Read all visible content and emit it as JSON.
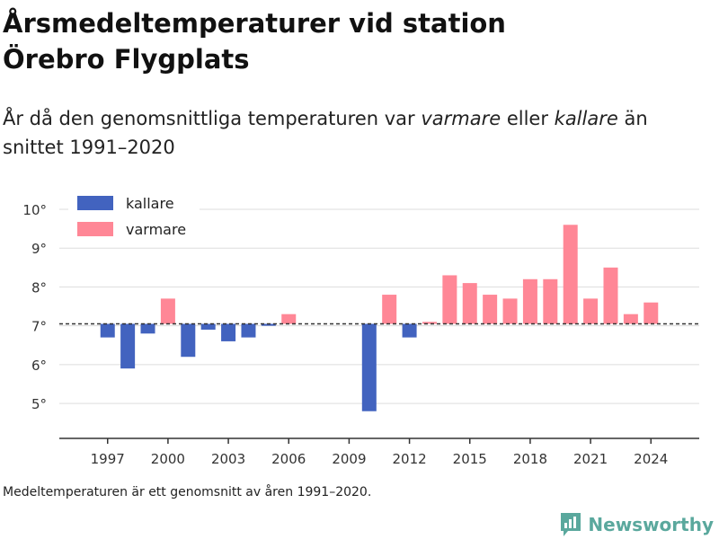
{
  "title_line1": "Årsmedeltemperaturer vid station",
  "title_line2": "Örebro Flygplats",
  "subtitle": {
    "pre": "År då den genomsnittliga temperaturen var ",
    "warmer": "varmare",
    "mid": " eller ",
    "colder": "kallare",
    "post": " än snittet 1991–2020"
  },
  "footnote": "Medeltemperaturen är ett genomsnitt av åren 1991–2020.",
  "brand": {
    "name": "Newsworthy",
    "icon": "newsworthy-logo-icon"
  },
  "colors": {
    "colder": "#4263bf",
    "warmer": "#ff8796",
    "grid": "#dddddd",
    "axis": "#333333"
  },
  "chart_data": {
    "type": "bar",
    "baseline": 7.05,
    "ylim": [
      4.1,
      10.3
    ],
    "yticks": [
      5,
      6,
      7,
      8,
      9,
      10
    ],
    "ytick_labels": [
      "5°",
      "6°",
      "7°",
      "8°",
      "9°",
      "10°"
    ],
    "xlim": [
      1994.6,
      2026.4
    ],
    "xticks": [
      1997,
      2000,
      2003,
      2006,
      2009,
      2012,
      2015,
      2018,
      2021,
      2024
    ],
    "legend": {
      "position": "top-left",
      "entries": [
        {
          "key": "colder",
          "label": "kallare"
        },
        {
          "key": "warmer",
          "label": "varmare"
        }
      ]
    },
    "years": [
      1997,
      1998,
      1999,
      2000,
      2001,
      2002,
      2003,
      2004,
      2005,
      2006,
      2010,
      2011,
      2012,
      2013,
      2014,
      2015,
      2016,
      2017,
      2018,
      2019,
      2020,
      2021,
      2022,
      2023,
      2024
    ],
    "values": [
      6.7,
      5.9,
      6.8,
      7.7,
      6.2,
      6.9,
      6.6,
      6.7,
      7.0,
      7.3,
      4.8,
      7.8,
      6.7,
      7.1,
      8.3,
      8.1,
      7.8,
      7.7,
      8.2,
      8.2,
      9.6,
      7.7,
      8.5,
      7.3,
      7.6
    ]
  }
}
